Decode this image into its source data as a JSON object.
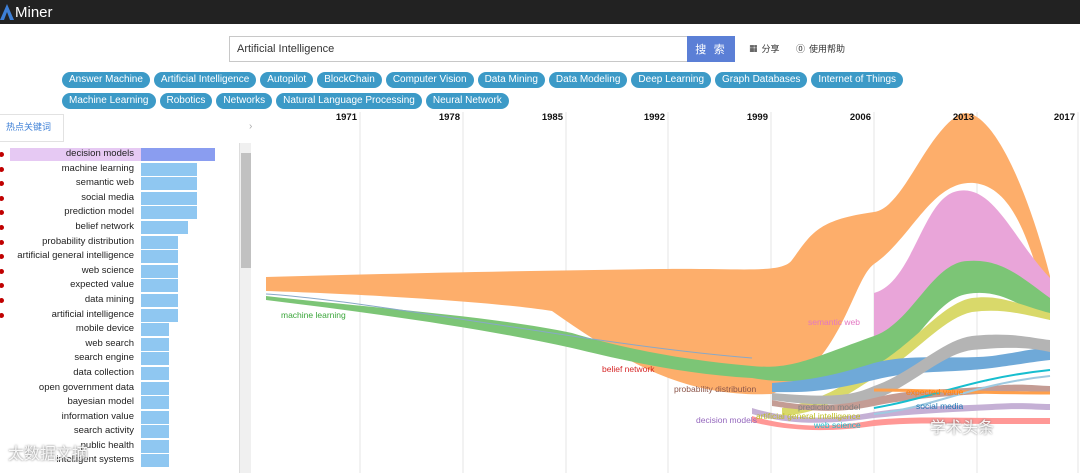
{
  "app": {
    "logo_text": "Miner",
    "logo_prefix": "A"
  },
  "search": {
    "value": "Artificial Intelligence",
    "button_label": "搜 索"
  },
  "header_links": {
    "share": "分享",
    "help": "使用帮助"
  },
  "tags_row1": [
    "Answer Machine",
    "Artificial Intelligence",
    "Autopilot",
    "BlockChain",
    "Computer Vision",
    "Data Mining",
    "Data Modeling",
    "Deep Learning",
    "Graph Databases",
    "Internet of Things"
  ],
  "tags_row2": [
    "Machine Learning",
    "Robotics",
    "Networks",
    "Natural Language Processing",
    "Neural Network"
  ],
  "panel": {
    "tab_label": "热点关键词"
  },
  "keywords": [
    {
      "label": "decision models",
      "value": 1.0,
      "dot": true,
      "selected": true
    },
    {
      "label": "machine learning",
      "value": 0.76,
      "dot": true
    },
    {
      "label": "semantic web",
      "value": 0.76,
      "dot": true
    },
    {
      "label": "social media",
      "value": 0.76,
      "dot": true
    },
    {
      "label": "prediction model",
      "value": 0.76,
      "dot": true
    },
    {
      "label": "belief network",
      "value": 0.63,
      "dot": true
    },
    {
      "label": "probability distribution",
      "value": 0.5,
      "dot": true
    },
    {
      "label": "artificial general intelligence",
      "value": 0.5,
      "dot": true
    },
    {
      "label": "web science",
      "value": 0.5,
      "dot": true
    },
    {
      "label": "expected value",
      "value": 0.5,
      "dot": true
    },
    {
      "label": "data mining",
      "value": 0.5,
      "dot": true
    },
    {
      "label": "artificial intelligence",
      "value": 0.5,
      "dot": true
    },
    {
      "label": "mobile device",
      "value": 0.38,
      "dot": false
    },
    {
      "label": "web search",
      "value": 0.38,
      "dot": false
    },
    {
      "label": "search engine",
      "value": 0.38,
      "dot": false
    },
    {
      "label": "data collection",
      "value": 0.38,
      "dot": false
    },
    {
      "label": "open government data",
      "value": 0.38,
      "dot": false
    },
    {
      "label": "bayesian model",
      "value": 0.38,
      "dot": false
    },
    {
      "label": "information value",
      "value": 0.38,
      "dot": false
    },
    {
      "label": "search activity",
      "value": 0.38,
      "dot": false
    },
    {
      "label": "public health",
      "value": 0.38,
      "dot": false
    },
    {
      "label": "intelligent systems",
      "value": 0.38,
      "dot": false
    }
  ],
  "timeline": {
    "years": [
      "1971",
      "1978",
      "1985",
      "1992",
      "1999",
      "2006",
      "2013",
      "2017"
    ],
    "stream_labels": [
      {
        "text": "machine learning",
        "color": "#3aa63a"
      },
      {
        "text": "belief network",
        "color": "#d62728"
      },
      {
        "text": "probability distribution",
        "color": "#8c564b"
      },
      {
        "text": "decision models",
        "color": "#9467bd"
      },
      {
        "text": "semantic web",
        "color": "#e377c2"
      },
      {
        "text": "prediction model",
        "color": "#7f7f7f"
      },
      {
        "text": "artificial general intelligence",
        "color": "#bcbd22"
      },
      {
        "text": "web science",
        "color": "#17becf"
      },
      {
        "text": "expected value",
        "color": "#ff7f0e"
      },
      {
        "text": "social media",
        "color": "#1f77b4"
      }
    ]
  },
  "watermarks": [
    "太数据文摘",
    "学术头条"
  ],
  "colors": {
    "tag_bg": "#3c9ac7",
    "search_button": "#5b7fd6",
    "topbar": "#222222",
    "bar": "#8fc7f1",
    "bar_selected": "#8a9df0",
    "dot": "#c00000"
  }
}
